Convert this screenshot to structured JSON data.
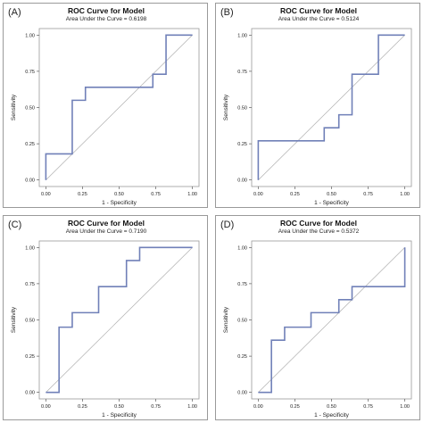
{
  "figure": {
    "panels": [
      {
        "letter": "(A)",
        "title": "ROC Curve for Model",
        "subtitle": "Area Under the Curve = 0.6198",
        "xlabel": "1 - Specificity",
        "ylabel": "Sensitivity"
      },
      {
        "letter": "(B)",
        "title": "ROC Curve for Model",
        "subtitle": "Area Under the Curve = 0.5124",
        "xlabel": "1 - Specificity",
        "ylabel": "Sensitivity"
      },
      {
        "letter": "(C)",
        "title": "ROC Curve for Model",
        "subtitle": "Area Under the Curve = 0.7190",
        "xlabel": "1 - Specificity",
        "ylabel": "Sensitivity"
      },
      {
        "letter": "(D)",
        "title": "ROC Curve for Model",
        "subtitle": "Area Under the Curve = 0.5372",
        "xlabel": "1 - Specificity",
        "ylabel": "Sensitivity"
      }
    ]
  },
  "colors": {
    "roc_line": "#7080b8",
    "diagonal": "#b0b0b0",
    "frame": "#9a9a9a"
  },
  "chart_data": [
    {
      "type": "line",
      "title": "ROC Curve for Model",
      "subtitle": "Area Under the Curve = 0.6198",
      "xlabel": "1 - Specificity",
      "ylabel": "Sensitivity",
      "xlim": [
        0,
        1
      ],
      "ylim": [
        0,
        1
      ],
      "xticks": [
        "0.00",
        "0.25",
        "0.50",
        "0.75",
        "1.00"
      ],
      "yticks": [
        "0.00",
        "0.25",
        "0.50",
        "0.75",
        "1.00"
      ],
      "grid": false,
      "reference_line": "diagonal",
      "x": [
        0,
        0,
        0.18,
        0.18,
        0.27,
        0.27,
        0.73,
        0.73,
        0.82,
        0.82,
        1.0
      ],
      "y": [
        0,
        0.18,
        0.18,
        0.55,
        0.55,
        0.64,
        0.64,
        0.73,
        0.73,
        1.0,
        1.0
      ]
    },
    {
      "type": "line",
      "title": "ROC Curve for Model",
      "subtitle": "Area Under the Curve = 0.5124",
      "xlabel": "1 - Specificity",
      "ylabel": "Sensitivity",
      "xlim": [
        0,
        1
      ],
      "ylim": [
        0,
        1
      ],
      "xticks": [
        "0.00",
        "0.25",
        "0.50",
        "0.75",
        "1.00"
      ],
      "yticks": [
        "0.00",
        "0.25",
        "0.50",
        "0.75",
        "1.00"
      ],
      "grid": false,
      "reference_line": "diagonal",
      "x": [
        0,
        0,
        0.45,
        0.45,
        0.55,
        0.55,
        0.64,
        0.64,
        0.82,
        0.82,
        1.0
      ],
      "y": [
        0,
        0.27,
        0.27,
        0.36,
        0.36,
        0.45,
        0.45,
        0.73,
        0.73,
        1.0,
        1.0
      ]
    },
    {
      "type": "line",
      "title": "ROC Curve for Model",
      "subtitle": "Area Under the Curve = 0.7190",
      "xlabel": "1 - Specificity",
      "ylabel": "Sensitivity",
      "xlim": [
        0,
        1
      ],
      "ylim": [
        0,
        1
      ],
      "xticks": [
        "0.00",
        "0.25",
        "0.50",
        "0.75",
        "1.00"
      ],
      "yticks": [
        "0.00",
        "0.25",
        "0.50",
        "0.75",
        "1.00"
      ],
      "grid": false,
      "reference_line": "diagonal",
      "x": [
        0,
        0.09,
        0.09,
        0.18,
        0.18,
        0.36,
        0.36,
        0.55,
        0.55,
        0.64,
        0.64,
        1.0
      ],
      "y": [
        0,
        0,
        0.45,
        0.45,
        0.55,
        0.55,
        0.73,
        0.73,
        0.91,
        0.91,
        1.0,
        1.0
      ]
    },
    {
      "type": "line",
      "title": "ROC Curve for Model",
      "subtitle": "Area Under the Curve = 0.5372",
      "xlabel": "1 - Specificity",
      "ylabel": "Sensitivity",
      "xlim": [
        0,
        1
      ],
      "ylim": [
        0,
        1
      ],
      "xticks": [
        "0.00",
        "0.25",
        "0.50",
        "0.75",
        "1.00"
      ],
      "yticks": [
        "0.00",
        "0.25",
        "0.50",
        "0.75",
        "1.00"
      ],
      "grid": false,
      "reference_line": "diagonal",
      "x": [
        0,
        0.09,
        0.09,
        0.18,
        0.18,
        0.36,
        0.36,
        0.55,
        0.55,
        0.64,
        0.64,
        1.0,
        1.0
      ],
      "y": [
        0,
        0,
        0.36,
        0.36,
        0.45,
        0.45,
        0.55,
        0.55,
        0.64,
        0.64,
        0.73,
        0.73,
        1.0
      ]
    }
  ]
}
